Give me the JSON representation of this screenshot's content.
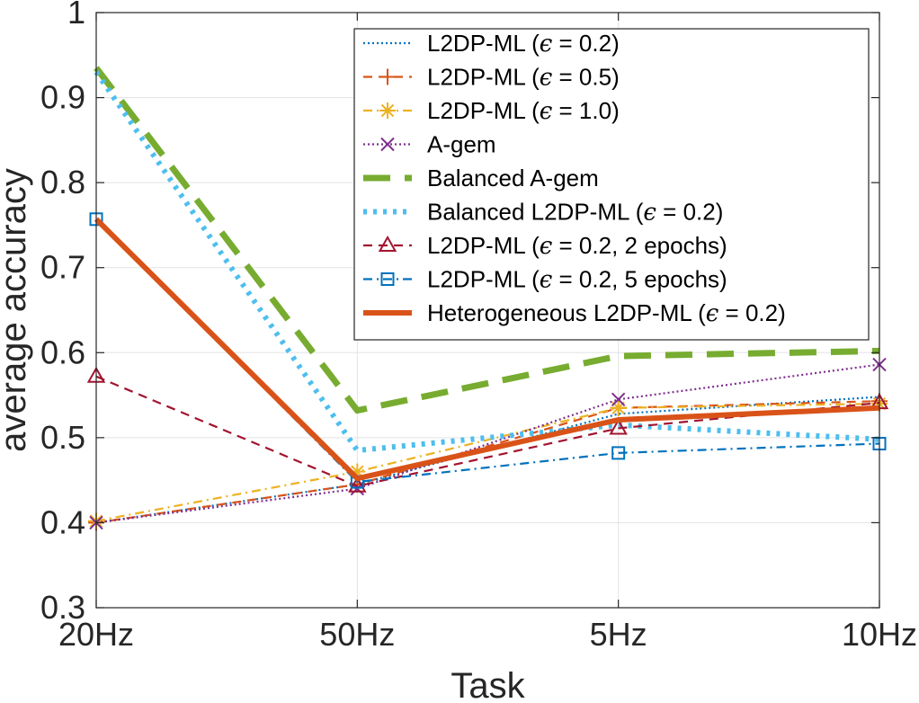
{
  "chart_data": {
    "type": "line",
    "title": "",
    "xlabel": "Task",
    "ylabel": "average accuracy",
    "categories": [
      "20Hz",
      "50Hz",
      "5Hz",
      "10Hz"
    ],
    "ylim": [
      0.3,
      1.0
    ],
    "yticks": [
      0.3,
      0.4,
      0.5,
      0.6,
      0.7,
      0.8,
      0.9,
      1.0
    ],
    "ytick_labels": [
      "0.3",
      "0.4",
      "0.5",
      "0.6",
      "0.7",
      "0.8",
      "0.9",
      "1"
    ],
    "grid": true,
    "legend_position": "top-right",
    "series": [
      {
        "name": "L2DP-ML (ϵ = 0.2)",
        "label_prefix": "L2DP-ML (",
        "label_var": "ϵ",
        "label_suffix": " = 0.2)",
        "color": "#0072BD",
        "dash": "dotted",
        "marker": "none",
        "width": "thin",
        "values": [
          0.4,
          0.445,
          0.528,
          0.548
        ]
      },
      {
        "name": "L2DP-ML (ϵ = 0.5)",
        "label_prefix": "L2DP-ML (",
        "label_var": "ϵ",
        "label_suffix": " = 0.5)",
        "color": "#D95319",
        "dash": "dashed",
        "marker": "plus",
        "width": "thin",
        "values": [
          0.4,
          0.445,
          0.535,
          0.543
        ]
      },
      {
        "name": "L2DP-ML (ϵ = 1.0)",
        "label_prefix": "L2DP-ML (",
        "label_var": "ϵ",
        "label_suffix": " = 1.0)",
        "color": "#EDB120",
        "dash": "dashdot",
        "marker": "asterisk",
        "width": "thin",
        "values": [
          0.402,
          0.46,
          0.535,
          0.54
        ]
      },
      {
        "name": "A-gem",
        "label_prefix": "A-gem",
        "label_var": "",
        "label_suffix": "",
        "color": "#7E2F8E",
        "dash": "dotted",
        "marker": "x",
        "width": "thin",
        "values": [
          0.4,
          0.44,
          0.545,
          0.586
        ]
      },
      {
        "name": "Balanced A-gem",
        "label_prefix": "Balanced A-gem",
        "label_var": "",
        "label_suffix": "",
        "color": "#77AC30",
        "dash": "longdash",
        "marker": "none",
        "width": "thick",
        "values": [
          0.935,
          0.532,
          0.596,
          0.602
        ]
      },
      {
        "name": "Balanced L2DP-ML (ϵ = 0.2)",
        "label_prefix": "Balanced L2DP-ML (",
        "label_var": "ϵ",
        "label_suffix": " = 0.2)",
        "color": "#4DBEEE",
        "dash": "dotted",
        "marker": "none",
        "width": "thick",
        "values": [
          0.93,
          0.485,
          0.515,
          0.498
        ]
      },
      {
        "name": "L2DP-ML (ϵ = 0.2, 2 epochs)",
        "label_prefix": "L2DP-ML (",
        "label_var": "ϵ",
        "label_suffix": " = 0.2, 2 epochs)",
        "color": "#A2142F",
        "dash": "dashed",
        "marker": "triangle",
        "width": "thin",
        "values": [
          0.572,
          0.443,
          0.511,
          0.541
        ]
      },
      {
        "name": "L2DP-ML (ϵ = 0.2, 5 epochs)",
        "label_prefix": "L2DP-ML (",
        "label_var": "ϵ",
        "label_suffix": " = 0.2, 5 epochs)",
        "color": "#0072BD",
        "dash": "dashdot",
        "marker": "square",
        "width": "thin",
        "values": [
          0.757,
          0.448,
          0.482,
          0.493
        ]
      },
      {
        "name": "Heterogeneous L2DP-ML (ϵ = 0.2)",
        "label_prefix": "Heterogeneous L2DP-ML (",
        "label_var": "ϵ",
        "label_suffix": " = 0.2)",
        "color": "#D95319",
        "dash": "solid",
        "marker": "none",
        "width": "thick",
        "values": [
          0.757,
          0.452,
          0.521,
          0.535
        ]
      }
    ]
  }
}
